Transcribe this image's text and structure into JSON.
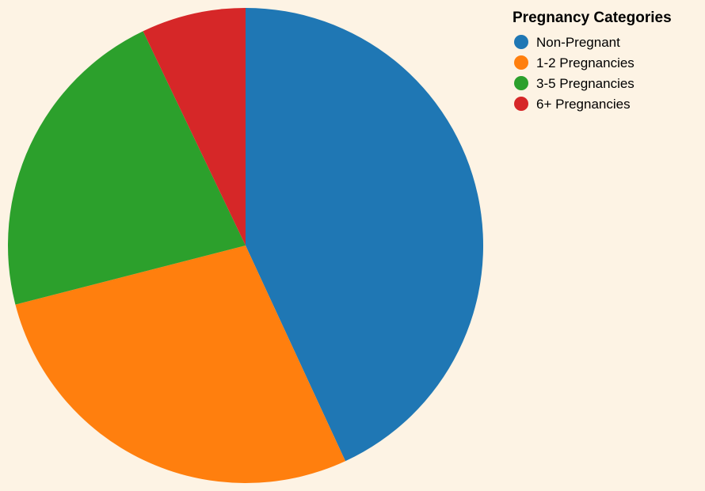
{
  "chart_data": {
    "type": "pie",
    "legend_title": "Pregnancy Categories",
    "legend_position": "top-right",
    "slices": [
      {
        "label": "Non-Pregnant",
        "value": 43.1,
        "color": "#1f77b4"
      },
      {
        "label": "1-2 Pregnancies",
        "value": 27.9,
        "color": "#ff7f0e"
      },
      {
        "label": "3-5 Pregnancies",
        "value": 21.9,
        "color": "#2ca02c"
      },
      {
        "label": "6+ Pregnancies",
        "value": 7.1,
        "color": "#d62728"
      }
    ]
  }
}
